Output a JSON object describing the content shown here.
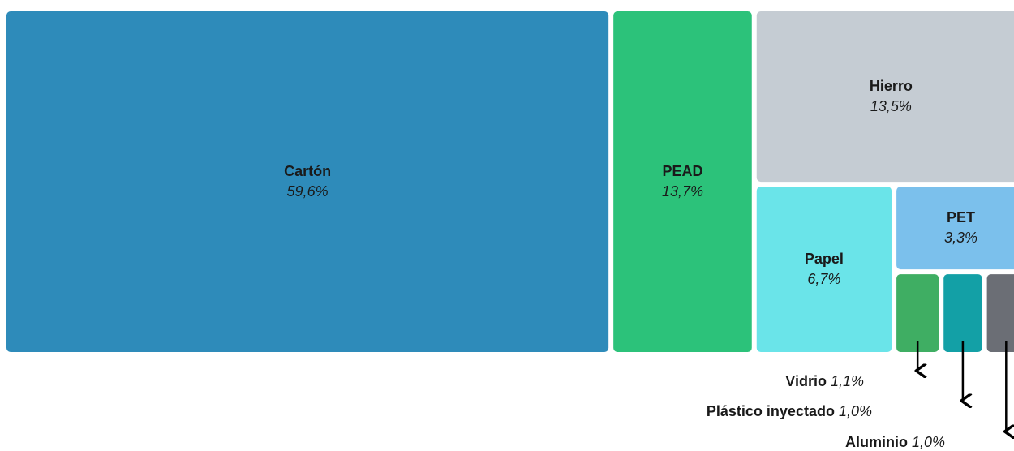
{
  "chart_data": {
    "type": "treemap",
    "categories": [
      "Cartón",
      "PEAD",
      "Hierro",
      "Papel",
      "PET",
      "Vidrio",
      "Plástico inyectado",
      "Aluminio"
    ],
    "values": [
      59.6,
      13.7,
      13.5,
      6.7,
      3.3,
      1.1,
      1.0,
      1.0
    ],
    "value_labels": [
      "59,6%",
      "13,7%",
      "13,5%",
      "6,7%",
      "3,3%",
      "1,1%",
      "1,0%",
      "1,0%"
    ],
    "colors": [
      "#2e8bba",
      "#2cc27a",
      "#c5ccd3",
      "#6ae4e9",
      "#7bc0ec",
      "#3fae63",
      "#13a0a6",
      "#6b6e75"
    ]
  }
}
